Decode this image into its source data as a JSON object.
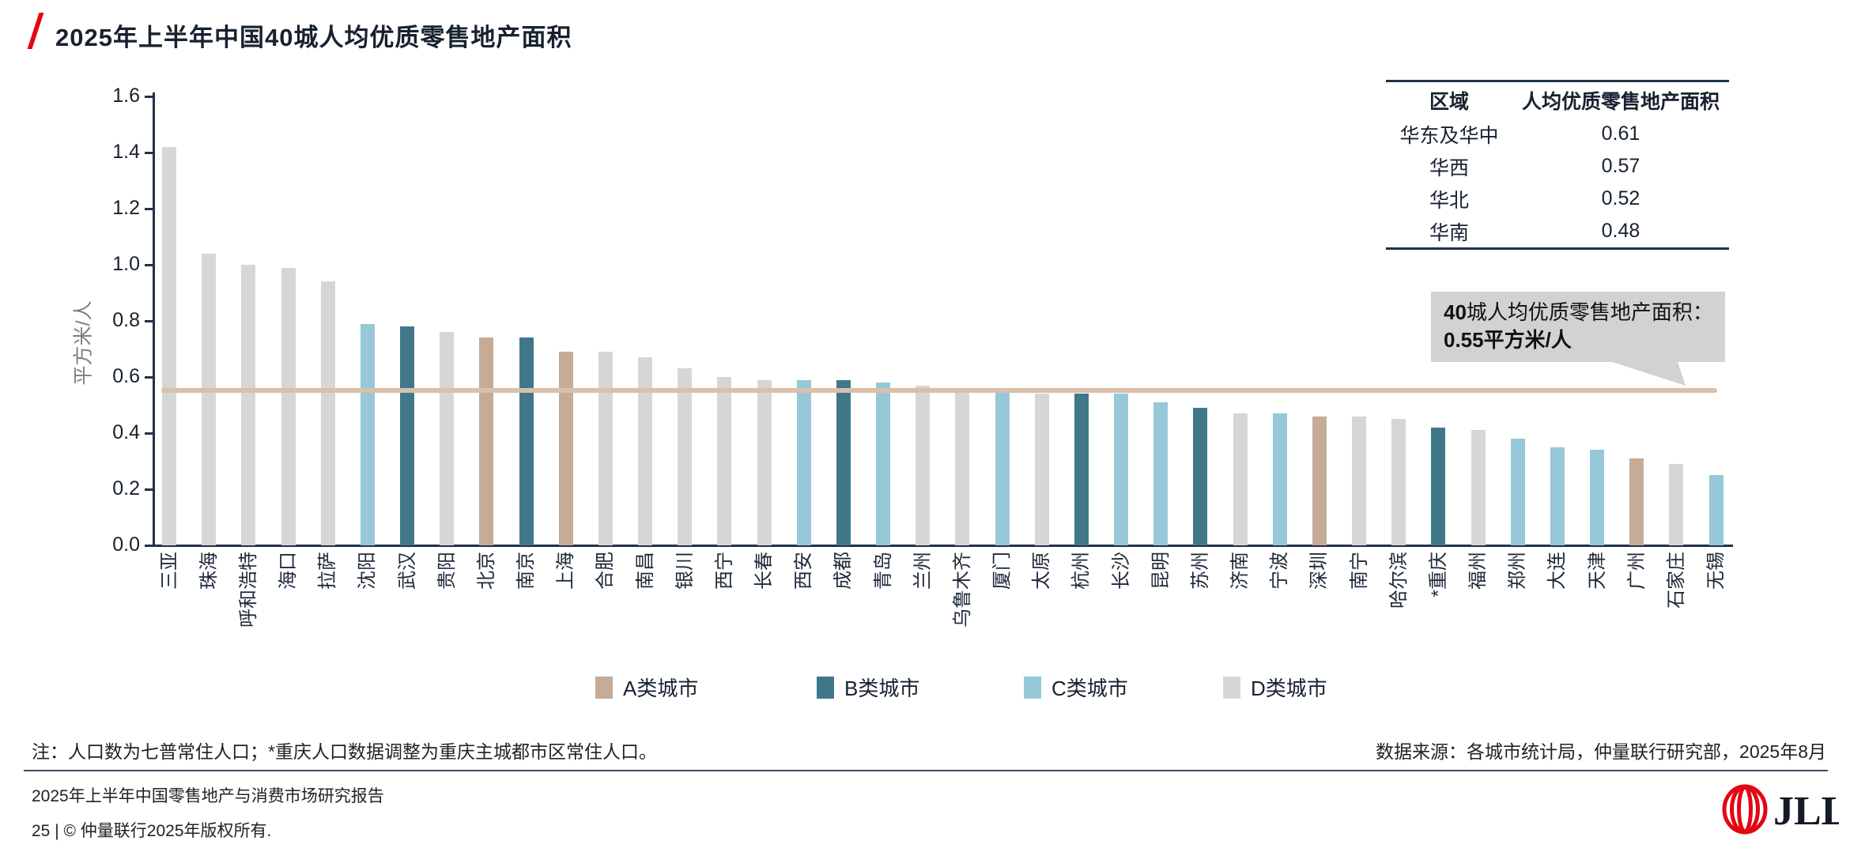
{
  "header": {
    "title": "2025年上半年中国40城人均优质零售地产面积"
  },
  "chart_data": {
    "type": "bar",
    "title": "2025年上半年中国40城人均优质零售地产面积",
    "xlabel": "",
    "ylabel": "平方米/人",
    "ylim": [
      0.0,
      1.6
    ],
    "ytick_labels": [
      "0.0",
      "0.2",
      "0.4",
      "0.6",
      "0.8",
      "1.0",
      "1.2",
      "1.4",
      "1.6"
    ],
    "grid": "off",
    "legend_position": "bottom",
    "categories": [
      "三亚",
      "珠海",
      "呼和浩特",
      "海口",
      "拉萨",
      "沈阳",
      "武汉",
      "贵阳",
      "北京",
      "南京",
      "上海",
      "合肥",
      "南昌",
      "银川",
      "西宁",
      "长春",
      "西安",
      "成都",
      "青岛",
      "兰州",
      "乌鲁木齐",
      "厦门",
      "太原",
      "杭州",
      "长沙",
      "昆明",
      "苏州",
      "济南",
      "宁波",
      "深圳",
      "南宁",
      "哈尔滨",
      "*重庆",
      "福州",
      "郑州",
      "大连",
      "天津",
      "广州",
      "石家庄",
      "无锡"
    ],
    "values": [
      1.42,
      1.04,
      1.0,
      0.99,
      0.94,
      0.79,
      0.78,
      0.76,
      0.74,
      0.74,
      0.69,
      0.69,
      0.67,
      0.63,
      0.6,
      0.59,
      0.59,
      0.59,
      0.58,
      0.57,
      0.56,
      0.56,
      0.54,
      0.54,
      0.54,
      0.51,
      0.49,
      0.47,
      0.47,
      0.46,
      0.46,
      0.45,
      0.42,
      0.41,
      0.38,
      0.35,
      0.34,
      0.31,
      0.29,
      0.25
    ],
    "classes": [
      "D",
      "D",
      "D",
      "D",
      "D",
      "C",
      "B",
      "D",
      "A",
      "B",
      "A",
      "D",
      "D",
      "D",
      "D",
      "D",
      "C",
      "B",
      "C",
      "D",
      "D",
      "C",
      "D",
      "B",
      "C",
      "C",
      "B",
      "D",
      "C",
      "A",
      "D",
      "D",
      "B",
      "D",
      "C",
      "C",
      "C",
      "A",
      "D",
      "C"
    ],
    "class_colors": {
      "A": "#C6AB96",
      "B": "#40788A",
      "C": "#96C8D8",
      "D": "#D6D6D6"
    },
    "average_line": {
      "value": 0.55,
      "color": "#D9C0AA"
    },
    "legend": [
      {
        "label": "A类城市",
        "color": "#C6AB96"
      },
      {
        "label": "B类城市",
        "color": "#40788A"
      },
      {
        "label": "C类城市",
        "color": "#96C8D8"
      },
      {
        "label": "D类城市",
        "color": "#D6D6D6"
      }
    ]
  },
  "table": {
    "headers": [
      "区域",
      "人均优质零售地产面积"
    ],
    "rows": [
      [
        "华东及华中",
        "0.61"
      ],
      [
        "华西",
        "0.57"
      ],
      [
        "华北",
        "0.52"
      ],
      [
        "华南",
        "0.48"
      ]
    ]
  },
  "callout": {
    "prefix_bold": "40",
    "prefix": "城人均优质零售地产面积：",
    "value_bold": "0.55平方米/人"
  },
  "notes": {
    "left": "注：人口数为七普常住人口；*重庆人口数据调整为重庆主城都市区常住人口。",
    "right": "数据来源：各城市统计局，仲量联行研究部，2025年8月"
  },
  "footer": {
    "report": "2025年上半年中国零售地产与消费市场研究报告",
    "copyright": "25 | © 仲量联行2025年版权所有.",
    "logo_text": "JLL"
  },
  "colors": {
    "accent_red": "#E30613",
    "axis": "#22304A",
    "text_dark": "#17212F"
  }
}
